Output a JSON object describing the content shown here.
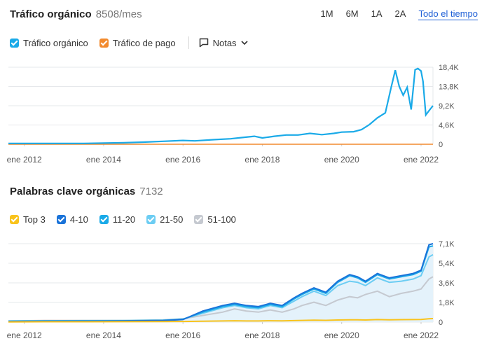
{
  "traffic": {
    "title": "Tráfico orgánico",
    "value": "8508/mes",
    "ranges": [
      "1M",
      "6M",
      "1A",
      "2A",
      "Todo el tiempo"
    ],
    "active_range": "Todo el tiempo",
    "legend": [
      {
        "label": "Tráfico orgánico",
        "color": "#1aaae8"
      },
      {
        "label": "Tráfico de pago",
        "color": "#f28a2e"
      }
    ],
    "notes_label": "Notas"
  },
  "keywords": {
    "title": "Palabras clave orgánicas",
    "value": "7132",
    "legend": [
      {
        "label": "Top 3",
        "color": "#f9c31c"
      },
      {
        "label": "4-10",
        "color": "#1a73d9"
      },
      {
        "label": "11-20",
        "color": "#1aaae8"
      },
      {
        "label": "21-50",
        "color": "#6ccdf3"
      },
      {
        "label": "51-100",
        "color": "#c5c9d0"
      }
    ]
  },
  "chart_data": [
    {
      "type": "line",
      "title": "Tráfico orgánico",
      "x_ticks": [
        "ene 2012",
        "ene 2014",
        "ene 2016",
        "ene 2018",
        "ene 2020",
        "ene 2022"
      ],
      "y_ticks": [
        "18,4K",
        "13,8K",
        "9,2K",
        "4,6K",
        "0"
      ],
      "ylim": [
        0,
        18400
      ],
      "xlim": [
        2011.6,
        2022.3
      ],
      "series": [
        {
          "name": "Tráfico orgánico",
          "color": "#1aaae8",
          "x": [
            2011.6,
            2012.5,
            2013.5,
            2014.5,
            2015.0,
            2015.5,
            2016.0,
            2016.3,
            2016.8,
            2017.2,
            2017.5,
            2017.8,
            2018.0,
            2018.3,
            2018.6,
            2018.9,
            2019.2,
            2019.5,
            2019.8,
            2020.0,
            2020.3,
            2020.5,
            2020.7,
            2020.9,
            2021.1,
            2021.25,
            2021.35,
            2021.45,
            2021.55,
            2021.65,
            2021.75,
            2021.85,
            2021.92,
            2022.0,
            2022.05,
            2022.12,
            2022.2,
            2022.3
          ],
          "y": [
            200,
            200,
            200,
            350,
            500,
            700,
            900,
            800,
            1100,
            1300,
            1600,
            1900,
            1500,
            1900,
            2200,
            2200,
            2600,
            2300,
            2600,
            2900,
            3000,
            3500,
            4700,
            6300,
            7500,
            13700,
            17700,
            13800,
            11700,
            13600,
            8300,
            17800,
            18100,
            17500,
            15000,
            7000,
            8000,
            9200
          ]
        },
        {
          "name": "Tráfico de pago",
          "color": "#f28a2e",
          "x": [
            2011.6,
            2022.3
          ],
          "y": [
            0,
            0
          ]
        }
      ]
    },
    {
      "type": "area",
      "title": "Palabras clave orgánicas",
      "x_ticks": [
        "ene 2012",
        "ene 2014",
        "ene 2016",
        "ene 2018",
        "ene 2020",
        "ene 2022"
      ],
      "y_ticks": [
        "7,1K",
        "5,4K",
        "3,6K",
        "1,8K",
        "0"
      ],
      "ylim": [
        0,
        7100
      ],
      "xlim": [
        2011.6,
        2022.3
      ],
      "x": [
        2011.6,
        2012.5,
        2013.5,
        2014.5,
        2015.5,
        2016.0,
        2016.5,
        2017.0,
        2017.3,
        2017.6,
        2017.9,
        2018.2,
        2018.5,
        2018.8,
        2019.0,
        2019.3,
        2019.6,
        2019.9,
        2020.2,
        2020.4,
        2020.6,
        2020.9,
        2021.2,
        2021.5,
        2021.8,
        2022.0,
        2022.2,
        2022.3
      ],
      "series": [
        {
          "name": "51-100",
          "color": "#c5c9d0",
          "values": [
            100,
            150,
            150,
            150,
            200,
            300,
            600,
            900,
            1200,
            1000,
            900,
            1100,
            900,
            1200,
            1500,
            1800,
            1500,
            2000,
            2300,
            2200,
            2500,
            2800,
            2300,
            2600,
            2800,
            3000,
            3900,
            4100
          ]
        },
        {
          "name": "21-50",
          "color": "#6ccdf3",
          "values": [
            100,
            120,
            130,
            140,
            180,
            280,
            800,
            1300,
            1500,
            1300,
            1200,
            1500,
            1300,
            1900,
            2300,
            2800,
            2400,
            3300,
            3700,
            3600,
            3300,
            4000,
            3600,
            3700,
            3900,
            4200,
            5900,
            6100
          ]
        },
        {
          "name": "11-20",
          "color": "#1aaae8",
          "values": [
            80,
            100,
            110,
            120,
            160,
            260,
            900,
            1400,
            1600,
            1400,
            1300,
            1600,
            1400,
            2100,
            2500,
            3000,
            2600,
            3600,
            4200,
            4000,
            3600,
            4300,
            3900,
            4100,
            4300,
            4600,
            6800,
            6900
          ]
        },
        {
          "name": "4-10",
          "color": "#1a73d9",
          "values": [
            60,
            80,
            90,
            100,
            140,
            230,
            1000,
            1500,
            1700,
            1500,
            1400,
            1700,
            1500,
            2200,
            2600,
            3100,
            2700,
            3700,
            4300,
            4100,
            3700,
            4400,
            4000,
            4200,
            4400,
            4700,
            7000,
            7100
          ]
        },
        {
          "name": "Top 3",
          "color": "#f9c31c",
          "values": [
            20,
            30,
            30,
            40,
            50,
            60,
            80,
            100,
            120,
            100,
            100,
            120,
            110,
            130,
            150,
            170,
            160,
            190,
            210,
            200,
            190,
            230,
            210,
            220,
            230,
            240,
            300,
            320
          ]
        }
      ]
    }
  ]
}
